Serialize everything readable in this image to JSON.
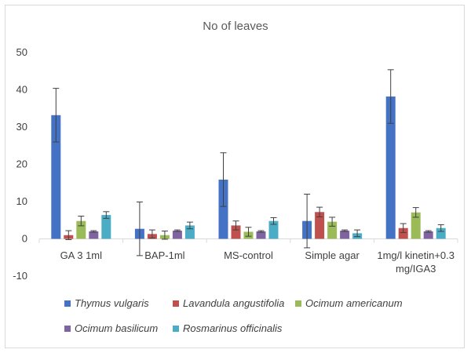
{
  "chart_data": {
    "type": "bar",
    "title": "No of leaves",
    "xlabel": "",
    "ylabel": "",
    "ylim": [
      -10,
      50
    ],
    "yticks": [
      -10,
      0,
      10,
      20,
      30,
      40,
      50
    ],
    "categories": [
      [
        "GA 3 1ml"
      ],
      [
        "BAP-1ml"
      ],
      [
        "MS-control"
      ],
      [
        "Simple agar"
      ],
      [
        "1mg/l kinetin+0.3",
        "mg/IGA3"
      ]
    ],
    "series": [
      {
        "name": "Thymus vulgaris",
        "color": "#4472c4",
        "values": [
          33.2,
          2.7,
          15.9,
          4.8,
          38.2
        ],
        "errors": [
          7.2,
          7.2,
          7.2,
          7.2,
          7.2
        ]
      },
      {
        "name": "Lavandula angustifolia",
        "color": "#c0504d",
        "values": [
          1.0,
          1.3,
          3.6,
          7.2,
          2.9
        ],
        "errors": [
          1.2,
          1.1,
          1.2,
          1.3,
          1.2
        ]
      },
      {
        "name": "Ocimum americanum",
        "color": "#9bbb59",
        "values": [
          4.8,
          1.0,
          1.9,
          4.6,
          7.1
        ],
        "errors": [
          1.3,
          1.1,
          1.2,
          1.2,
          1.3
        ]
      },
      {
        "name": "Ocimum basilicum",
        "color": "#8064a2",
        "values": [
          2.0,
          2.2,
          2.0,
          2.2,
          2.0
        ],
        "errors": [
          0.2,
          0.2,
          0.2,
          0.2,
          0.2
        ]
      },
      {
        "name": "Rosmarinus officinalis",
        "color": "#4bacc6",
        "values": [
          6.4,
          3.6,
          4.8,
          1.5,
          2.9
        ],
        "errors": [
          0.9,
          0.9,
          0.9,
          0.9,
          0.9
        ]
      }
    ],
    "grid": false,
    "legend_position": "bottom"
  }
}
